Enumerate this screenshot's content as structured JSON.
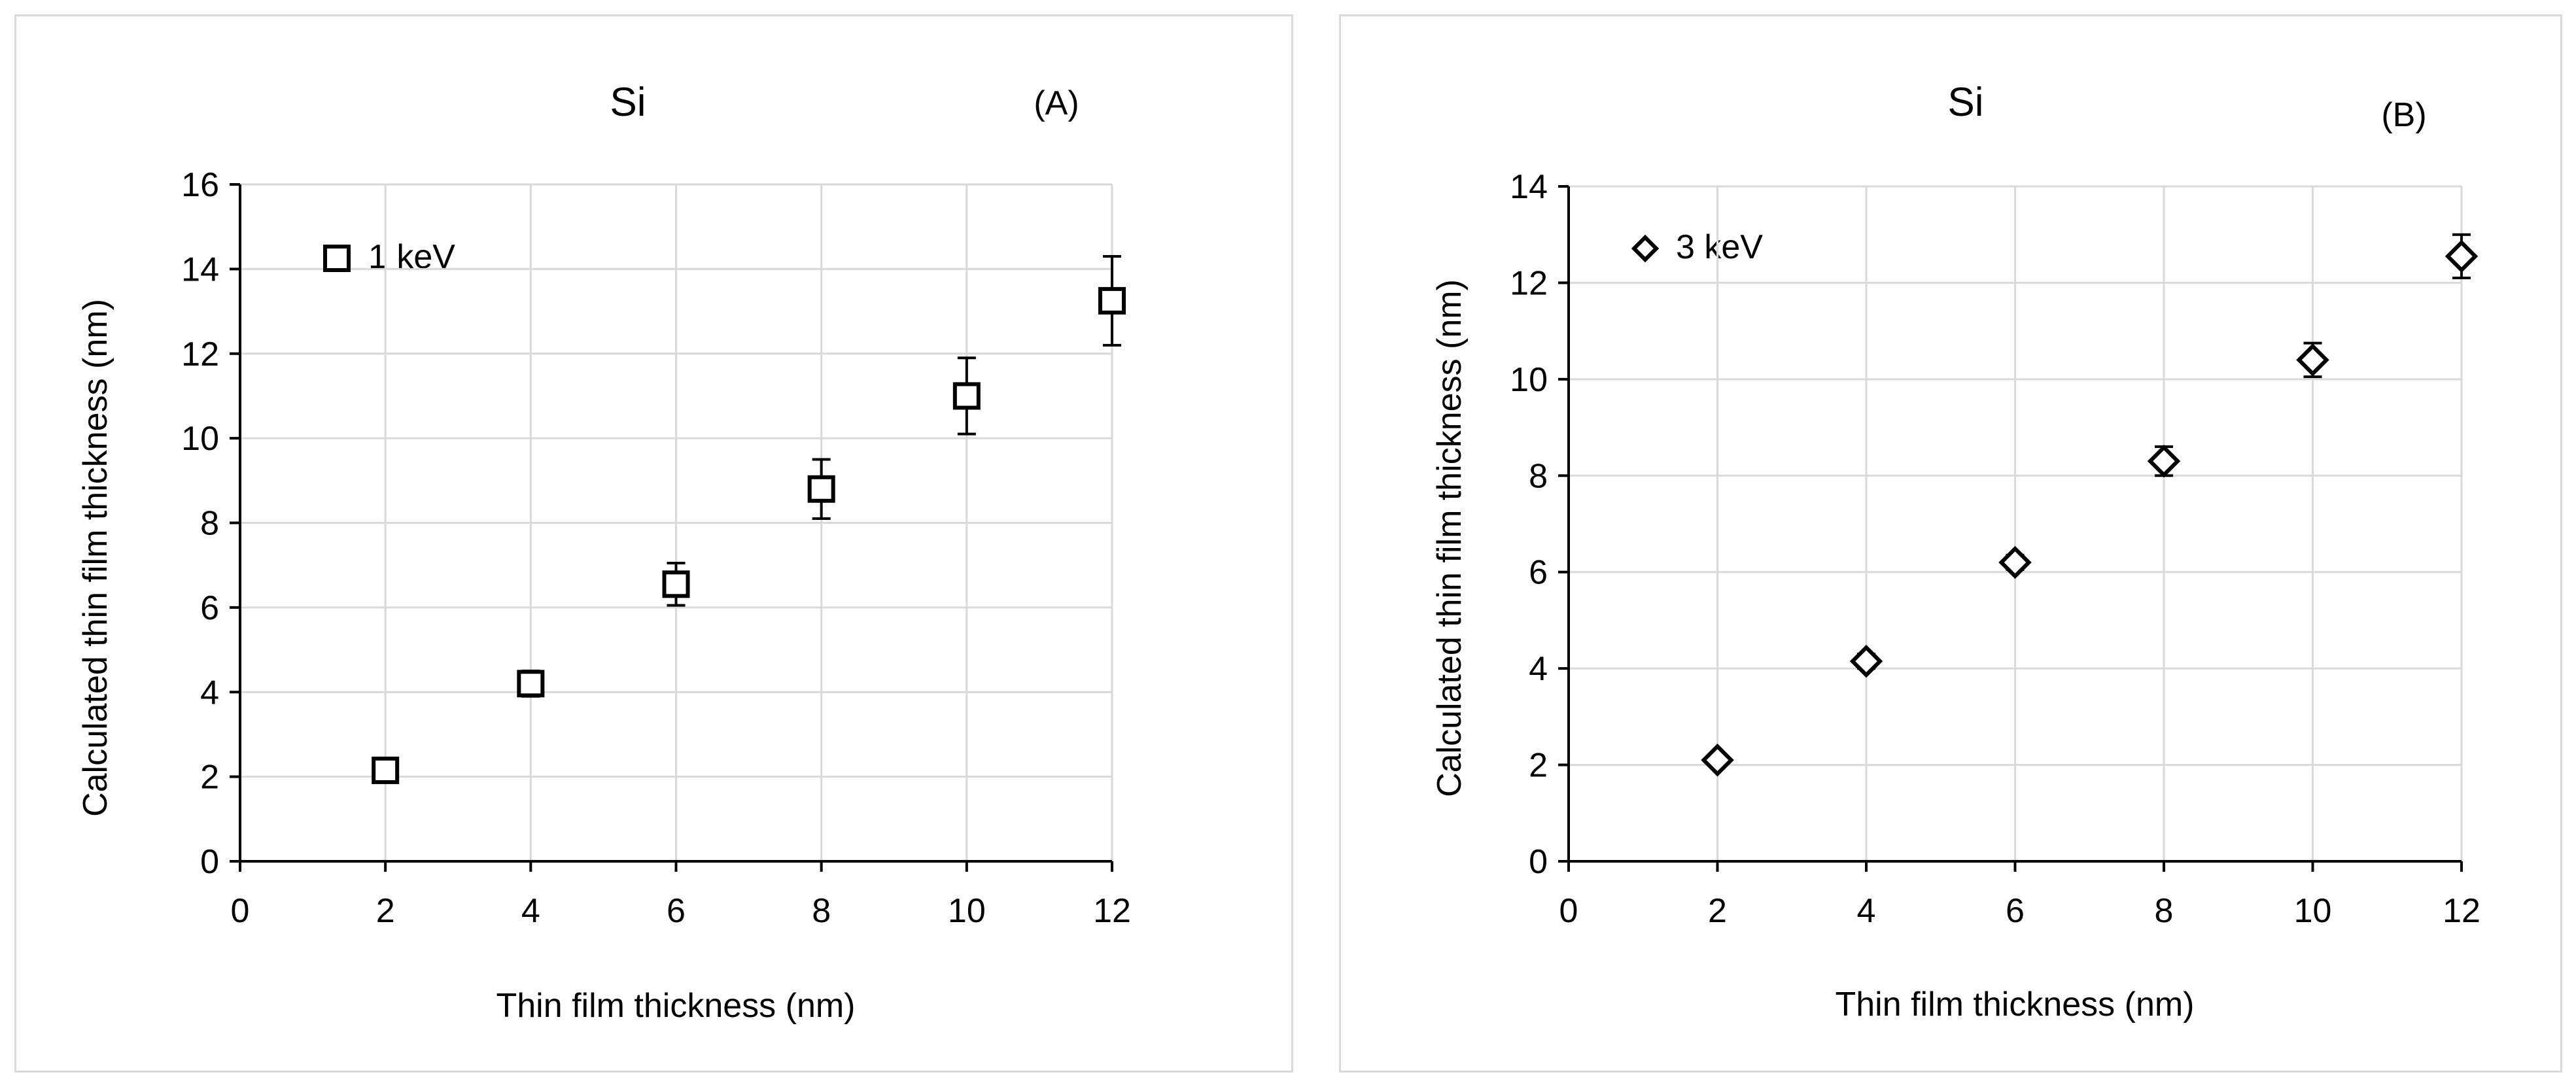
{
  "chart_data": [
    {
      "type": "scatter",
      "title": "Si",
      "panel_label": "(A)",
      "xlabel": "Thin film  thickness (nm)",
      "ylabel": "Calculated thin film thickness (nm)",
      "xlim": [
        0,
        12
      ],
      "ylim": [
        0,
        16
      ],
      "xticks": [
        0,
        2,
        4,
        6,
        8,
        10,
        12
      ],
      "yticks": [
        0,
        2,
        4,
        6,
        8,
        10,
        12,
        14,
        16
      ],
      "grid": true,
      "legend_position": "top-left",
      "series": [
        {
          "name": "1 keV",
          "marker": "square",
          "points": [
            {
              "x": 2,
              "y": 2.15,
              "err": 0.2
            },
            {
              "x": 4,
              "y": 4.2,
              "err": 0.3
            },
            {
              "x": 6,
              "y": 6.55,
              "err": 0.5
            },
            {
              "x": 8,
              "y": 8.8,
              "err": 0.7
            },
            {
              "x": 10,
              "y": 11.0,
              "err": 0.9
            },
            {
              "x": 12,
              "y": 13.25,
              "err": 1.05
            }
          ]
        }
      ]
    },
    {
      "type": "scatter",
      "title": "Si",
      "panel_label": "(B)",
      "xlabel": "Thin film  thickness (nm)",
      "ylabel": "Calculated thin film thickness (nm)",
      "xlim": [
        0,
        12
      ],
      "ylim": [
        0,
        14
      ],
      "xticks": [
        0,
        2,
        4,
        6,
        8,
        10,
        12
      ],
      "yticks": [
        0,
        2,
        4,
        6,
        8,
        10,
        12,
        14
      ],
      "grid": true,
      "legend_position": "top-left",
      "series": [
        {
          "name": "3 keV",
          "marker": "diamond",
          "points": [
            {
              "x": 2,
              "y": 2.1,
              "err": 0.1
            },
            {
              "x": 4,
              "y": 4.15,
              "err": 0.15
            },
            {
              "x": 6,
              "y": 6.2,
              "err": 0.15
            },
            {
              "x": 8,
              "y": 8.3,
              "err": 0.3
            },
            {
              "x": 10,
              "y": 10.4,
              "err": 0.35
            },
            {
              "x": 12,
              "y": 12.55,
              "err": 0.45
            }
          ]
        }
      ]
    }
  ]
}
